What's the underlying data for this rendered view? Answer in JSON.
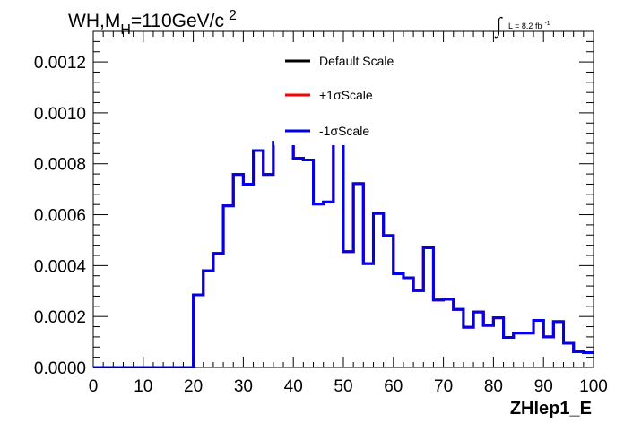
{
  "chart_data": {
    "type": "line",
    "step": true,
    "title_parts": {
      "main": "WH,M",
      "sub": "H",
      "tail": "=110GeV/c",
      "sup": "2"
    },
    "lumi_label": {
      "integral": "∫",
      "text": "L = 8.2 fb",
      "sup": "-1"
    },
    "xlabel": "ZHlep1_E",
    "ylabel": "",
    "xlim": [
      0,
      100
    ],
    "ylim": [
      0,
      0.00132
    ],
    "x_ticks": [
      "0",
      "10",
      "20",
      "30",
      "40",
      "50",
      "60",
      "70",
      "80",
      "90",
      "100"
    ],
    "y_ticks": [
      "0.0000",
      "0.0002",
      "0.0004",
      "0.0006",
      "0.0008",
      "0.0010",
      "0.0012"
    ],
    "grid": false,
    "legend_position": "top-center",
    "bin_edges": [
      0,
      2,
      4,
      6,
      8,
      10,
      12,
      14,
      16,
      18,
      20,
      22,
      24,
      26,
      28,
      30,
      32,
      34,
      36,
      38,
      40,
      42,
      44,
      46,
      48,
      50,
      52,
      54,
      56,
      58,
      60,
      62,
      64,
      66,
      68,
      70,
      72,
      74,
      76,
      78,
      80,
      82,
      84,
      86,
      88,
      90,
      92,
      94,
      96,
      98,
      100
    ],
    "series": [
      {
        "name": "Default Scale",
        "color": "#000000",
        "values": [
          0,
          0,
          0,
          0,
          0,
          0,
          0,
          0,
          0,
          0,
          0.000285,
          0.00038,
          0.000448,
          0.000635,
          0.000758,
          0.00072,
          0.000852,
          0.000758,
          0.000885,
          0.00098,
          0.000822,
          0.000815,
          0.000642,
          0.00065,
          0.000945,
          0.000455,
          0.000722,
          0.000408,
          0.000605,
          0.000518,
          0.000368,
          0.000352,
          0.000302,
          0.00047,
          0.000265,
          0.000268,
          0.000228,
          0.000158,
          0.000218,
          0.000165,
          0.000195,
          0.000118,
          0.000135,
          0.000135,
          0.000185,
          0.00012,
          0.00018,
          9.5e-05,
          6.2e-05,
          5.8e-05
        ]
      },
      {
        "name": "+1σScale",
        "color": "#ff0000",
        "values": [
          0,
          0,
          0,
          0,
          0,
          0,
          0,
          0,
          0,
          0,
          0.000285,
          0.00038,
          0.000448,
          0.000635,
          0.000758,
          0.00072,
          0.000852,
          0.000758,
          0.000885,
          0.00098,
          0.000822,
          0.000815,
          0.000642,
          0.00065,
          0.000945,
          0.000455,
          0.000722,
          0.000408,
          0.000605,
          0.000518,
          0.000368,
          0.000352,
          0.000302,
          0.00047,
          0.000265,
          0.000268,
          0.000228,
          0.000158,
          0.000218,
          0.000165,
          0.000195,
          0.000118,
          0.000135,
          0.000135,
          0.000185,
          0.00012,
          0.00018,
          9.5e-05,
          6.2e-05,
          5.8e-05
        ]
      },
      {
        "name": "-1σScale",
        "color": "#0000ee",
        "values": [
          0,
          0,
          0,
          0,
          0,
          0,
          0,
          0,
          0,
          0,
          0.000285,
          0.00038,
          0.000448,
          0.000635,
          0.000758,
          0.00072,
          0.000852,
          0.000758,
          0.000885,
          0.00098,
          0.000822,
          0.000815,
          0.000642,
          0.00065,
          0.000945,
          0.000455,
          0.000722,
          0.000408,
          0.000605,
          0.000518,
          0.000368,
          0.000352,
          0.000302,
          0.00047,
          0.000265,
          0.000268,
          0.000228,
          0.000158,
          0.000218,
          0.000165,
          0.000195,
          0.000118,
          0.000135,
          0.000135,
          0.000185,
          0.00012,
          0.00018,
          9.5e-05,
          6.2e-05,
          5.8e-05
        ]
      }
    ]
  }
}
